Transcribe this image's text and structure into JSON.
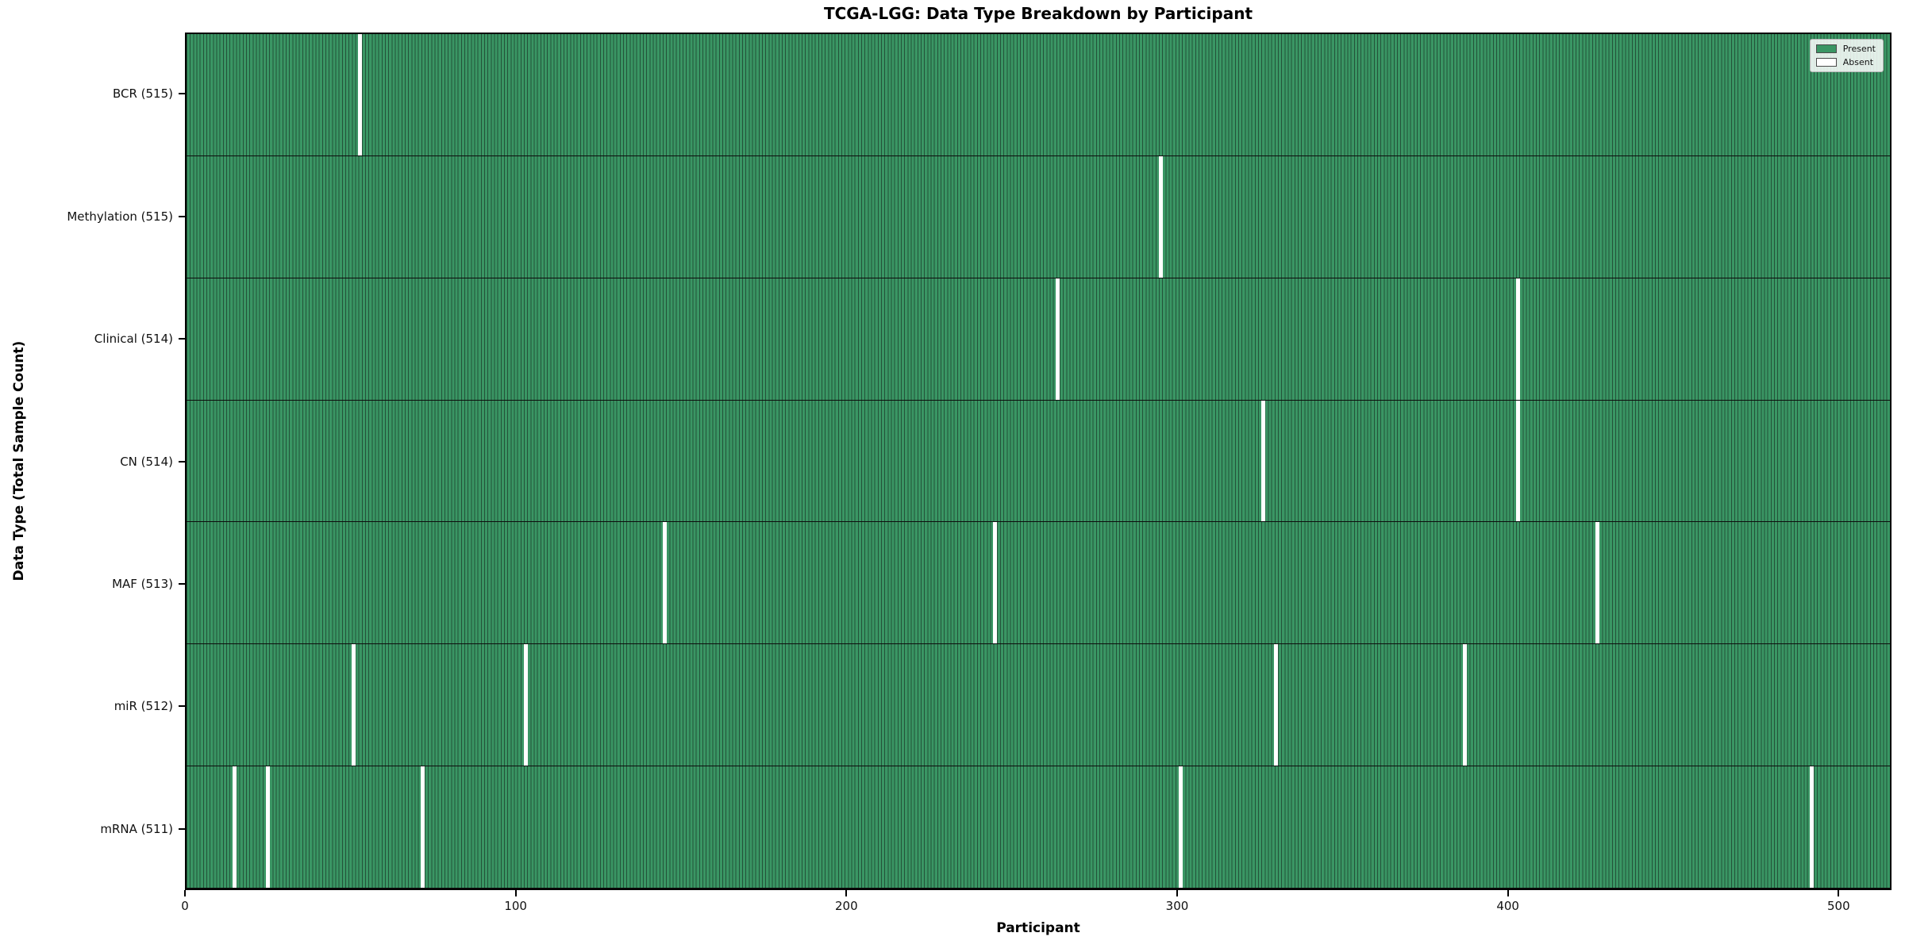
{
  "title": "TCGA-LGG: Data Type Breakdown by Participant",
  "chart_data": {
    "type": "heatmap",
    "title": "TCGA-LGG: Data Type Breakdown by Participant",
    "xlabel": "Participant",
    "ylabel": "Data Type (Total Sample Count)",
    "x_ticks": [
      0,
      100,
      200,
      300,
      400,
      500
    ],
    "xlim": [
      0,
      516
    ],
    "n_participants": 516,
    "grid": false,
    "legend": {
      "position": "upper right",
      "entries": [
        {
          "label": "Present",
          "color": "#3a9664"
        },
        {
          "label": "Absent",
          "color": "#ffffff"
        }
      ]
    },
    "rows": [
      {
        "data_type": "BCR",
        "label": "BCR (515)",
        "present_count": 515,
        "absent_participants": [
          52
        ]
      },
      {
        "data_type": "Methylation",
        "label": "Methylation (515)",
        "present_count": 515,
        "absent_participants": [
          294
        ]
      },
      {
        "data_type": "Clinical",
        "label": "Clinical (514)",
        "present_count": 514,
        "absent_participants": [
          263,
          402
        ]
      },
      {
        "data_type": "CN",
        "label": "CN (514)",
        "present_count": 514,
        "absent_participants": [
          325,
          402
        ]
      },
      {
        "data_type": "MAF",
        "label": "MAF (513)",
        "present_count": 513,
        "absent_participants": [
          144,
          244,
          426
        ]
      },
      {
        "data_type": "miR",
        "label": "miR (512)",
        "present_count": 512,
        "absent_participants": [
          50,
          102,
          329,
          386
        ]
      },
      {
        "data_type": "mRNA",
        "label": "mRNA (511)",
        "present_count": 511,
        "absent_participants": [
          14,
          24,
          71,
          300,
          491
        ]
      }
    ],
    "colors": {
      "present_fill": "#3a9664",
      "cell_edge": "#235239",
      "absent_fill": "#ffffff",
      "row_separator": "#0d0d0d",
      "plot_border": "#000000",
      "background": "#ffffff"
    }
  }
}
